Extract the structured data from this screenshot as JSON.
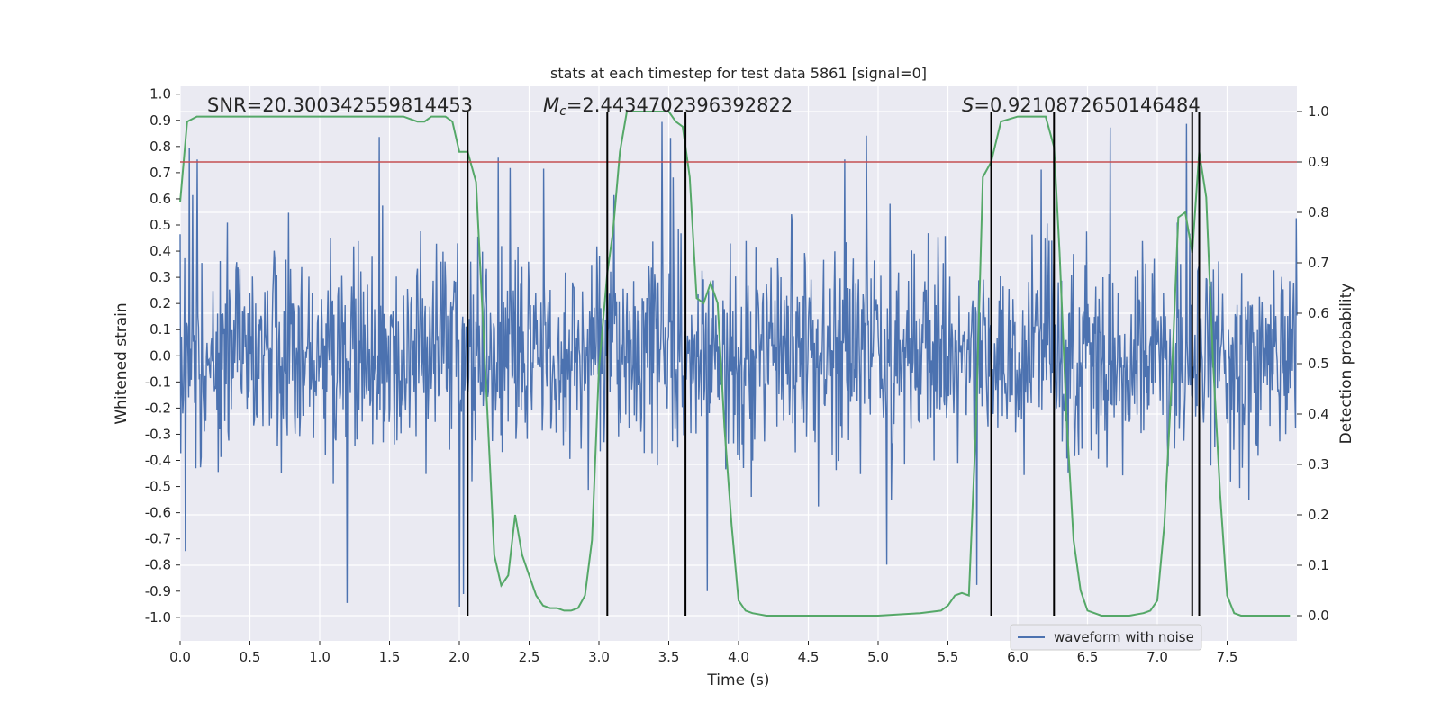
{
  "chart_data": {
    "type": "line",
    "title": "stats at each timestep for test data 5861 [signal=0]",
    "xlabel": "Time (s)",
    "ylabel": "Whitened strain",
    "ylabel_right": "Detection probability",
    "xlim": [
      0.0,
      8.0
    ],
    "ylim": [
      -1.09,
      1.03
    ],
    "ylim_right": [
      -0.05,
      1.05
    ],
    "x_ticks": [
      "0.0",
      "0.5",
      "1.0",
      "1.5",
      "2.0",
      "2.5",
      "3.0",
      "3.5",
      "4.0",
      "4.5",
      "5.0",
      "5.5",
      "6.0",
      "6.5",
      "7.0",
      "7.5"
    ],
    "x_tick_values": [
      0.0,
      0.5,
      1.0,
      1.5,
      2.0,
      2.5,
      3.0,
      3.5,
      4.0,
      4.5,
      5.0,
      5.5,
      6.0,
      6.5,
      7.0,
      7.5
    ],
    "y_ticks": [
      "1.0",
      "0.9",
      "0.8",
      "0.7",
      "0.6",
      "0.5",
      "0.4",
      "0.3",
      "0.2",
      "0.1",
      "0.0",
      "-0.1",
      "-0.2",
      "-0.3",
      "-0.4",
      "-0.5",
      "-0.6",
      "-0.7",
      "-0.8",
      "-0.9",
      "-1.0"
    ],
    "y_tick_values": [
      1.0,
      0.9,
      0.8,
      0.7,
      0.6,
      0.5,
      0.4,
      0.3,
      0.2,
      0.1,
      0.0,
      -0.1,
      -0.2,
      -0.3,
      -0.4,
      -0.5,
      -0.6,
      -0.7,
      -0.8,
      -0.9,
      -1.0
    ],
    "y_ticks_right": [
      "1.0",
      "0.9",
      "0.8",
      "0.7",
      "0.6",
      "0.5",
      "0.4",
      "0.3",
      "0.2",
      "0.1",
      "0.0"
    ],
    "y_tick_values_right": [
      1.0,
      0.9,
      0.8,
      0.7,
      0.6,
      0.5,
      0.4,
      0.3,
      0.2,
      0.1,
      0.0
    ],
    "annotations": {
      "snr": "SNR=20.300342559814453",
      "mc_symbol": "M",
      "mc_subscript": "c",
      "mc_value": "=2.4434702396392822",
      "s_symbol": "S",
      "s_value": "=0.9210872650146484"
    },
    "threshold": {
      "value": 0.9,
      "axis": "right"
    },
    "event_boundaries": [
      2.06,
      3.06,
      3.62,
      5.81,
      6.26,
      7.25,
      7.3
    ],
    "event_boundary_span_right": [
      0.0,
      1.0
    ],
    "series": [
      {
        "name": "waveform with noise",
        "axis": "left",
        "kind": "noise",
        "x_range": [
          0.0,
          8.0
        ],
        "samples": 1700,
        "envelope_sigma": 0.2,
        "max_spike": 0.97,
        "min_spike": -1.0
      },
      {
        "name": "detection probability",
        "axis": "right",
        "x": [
          0.0,
          0.05,
          0.12,
          0.2,
          0.5,
          0.8,
          1.0,
          1.2,
          1.5,
          1.6,
          1.7,
          1.75,
          1.8,
          1.85,
          1.9,
          1.95,
          2.0,
          2.06,
          2.12,
          2.2,
          2.25,
          2.3,
          2.35,
          2.4,
          2.45,
          2.5,
          2.55,
          2.6,
          2.65,
          2.7,
          2.75,
          2.8,
          2.85,
          2.9,
          2.95,
          3.0,
          3.06,
          3.1,
          3.15,
          3.2,
          3.25,
          3.3,
          3.35,
          3.4,
          3.45,
          3.5,
          3.55,
          3.6,
          3.65,
          3.7,
          3.75,
          3.8,
          3.85,
          3.9,
          3.95,
          4.0,
          4.05,
          4.1,
          4.2,
          4.5,
          5.0,
          5.3,
          5.45,
          5.5,
          5.55,
          5.6,
          5.65,
          5.7,
          5.75,
          5.81,
          5.88,
          6.0,
          6.1,
          6.15,
          6.2,
          6.26,
          6.3,
          6.35,
          6.4,
          6.45,
          6.5,
          6.6,
          6.8,
          6.9,
          6.95,
          7.0,
          7.05,
          7.1,
          7.15,
          7.2,
          7.25,
          7.3,
          7.35,
          7.4,
          7.45,
          7.5,
          7.55,
          7.6,
          7.7,
          7.95
        ],
        "y": [
          0.82,
          0.98,
          0.99,
          0.99,
          0.99,
          0.99,
          0.99,
          0.99,
          0.99,
          0.99,
          0.98,
          0.98,
          0.99,
          0.99,
          0.99,
          0.98,
          0.92,
          0.92,
          0.86,
          0.41,
          0.12,
          0.06,
          0.08,
          0.2,
          0.12,
          0.08,
          0.04,
          0.02,
          0.015,
          0.015,
          0.01,
          0.01,
          0.015,
          0.04,
          0.15,
          0.49,
          0.68,
          0.76,
          0.92,
          1.0,
          1.0,
          1.0,
          1.0,
          1.0,
          1.0,
          1.0,
          0.98,
          0.97,
          0.87,
          0.63,
          0.62,
          0.66,
          0.62,
          0.37,
          0.18,
          0.03,
          0.01,
          0.005,
          0.0,
          0.0,
          0.0,
          0.005,
          0.01,
          0.02,
          0.04,
          0.045,
          0.04,
          0.37,
          0.87,
          0.9,
          0.98,
          0.99,
          0.99,
          0.99,
          0.99,
          0.93,
          0.72,
          0.39,
          0.15,
          0.05,
          0.01,
          0.0,
          0.0,
          0.005,
          0.01,
          0.03,
          0.18,
          0.45,
          0.79,
          0.8,
          0.72,
          0.92,
          0.83,
          0.5,
          0.24,
          0.04,
          0.005,
          0.0,
          0.0,
          0.0
        ]
      }
    ],
    "legend": {
      "location": "lower-right",
      "entries": [
        "waveform with noise"
      ]
    },
    "colors": {
      "background": "#eaeaf2",
      "grid": "#ffffff",
      "waveform": "#4c72b0",
      "probability": "#55a868",
      "threshold": "#c44e52",
      "boundary": "#000000"
    }
  }
}
